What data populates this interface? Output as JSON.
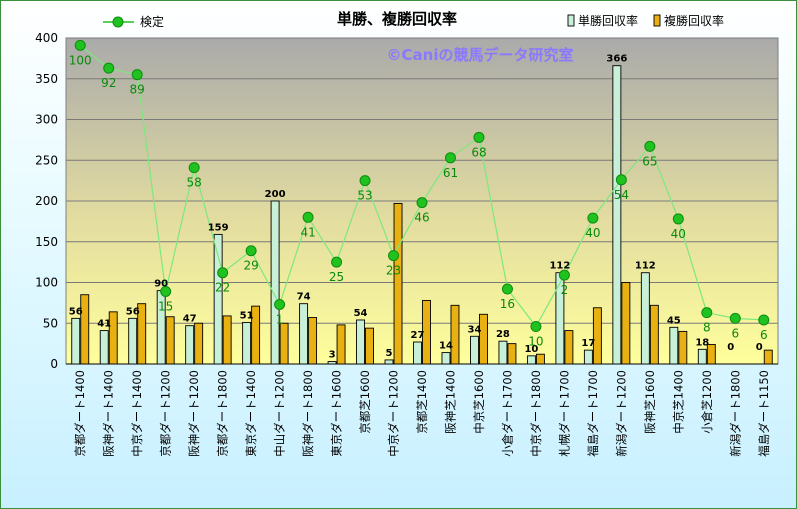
{
  "chart_data": {
    "type": "bar",
    "title": "単勝、複勝回収率",
    "watermark": "©Caniの競馬データ研究室",
    "ylim": [
      0,
      400
    ],
    "yticks": [
      0,
      50,
      100,
      150,
      200,
      250,
      300,
      350,
      400
    ],
    "legend_placement": "top",
    "grid": true,
    "categories": [
      "京都ダート1400",
      "阪神ダート1400",
      "中京ダート1400",
      "京都ダート1200",
      "阪神ダート1200",
      "京都ダート1800",
      "東京ダート1400",
      "中山ダート1200",
      "阪神ダート1800",
      "東京ダート1600",
      "京都芝1600",
      "中京ダート1200",
      "京都芝1400",
      "阪神芝1400",
      "中京芝1600",
      "小倉ダート1700",
      "中京ダート1800",
      "札幌ダート1700",
      "福島ダート1700",
      "新潟ダート1200",
      "阪神芝1600",
      "中京芝1400",
      "小倉芝1200",
      "新潟ダート1800",
      "福島ダート1150"
    ],
    "series": [
      {
        "name": "単勝回収率",
        "type": "bar",
        "color": "#c8f0d8",
        "values": [
          56,
          41,
          56,
          90,
          47,
          159,
          51,
          200,
          74,
          3,
          54,
          5,
          27,
          14,
          34,
          28,
          10,
          112,
          17,
          366,
          112,
          45,
          18,
          0,
          0
        ],
        "labels": [
          "56",
          "41",
          "56",
          "90",
          "47",
          "159",
          "51",
          "200",
          "74",
          "3",
          "54",
          "5",
          "27",
          "14",
          "34",
          "28",
          "10",
          "112",
          "17",
          "366",
          "112",
          "45",
          "18",
          "0",
          "0"
        ]
      },
      {
        "name": "複勝回収率",
        "type": "bar",
        "color": "#e8b010",
        "values": [
          85,
          64,
          74,
          58,
          50,
          59,
          71,
          50,
          57,
          48,
          44,
          197,
          78,
          72,
          61,
          25,
          12,
          41,
          69,
          100,
          72,
          40,
          24,
          0,
          17
        ]
      },
      {
        "name": "検定",
        "type": "line",
        "color": "#11bb11",
        "values": [
          391,
          363,
          355,
          89,
          241,
          112,
          139,
          73,
          180,
          125,
          225,
          133,
          198,
          253,
          278,
          92,
          46,
          109,
          179,
          226,
          267,
          178,
          63,
          56,
          54
        ],
        "labels": [
          "100",
          "92",
          "89",
          "15",
          "58",
          "22",
          "29",
          "1",
          "41",
          "25",
          "53",
          "23",
          "46",
          "61",
          "68",
          "16",
          "10",
          "2",
          "40",
          "54",
          "65",
          "40",
          "8",
          "6",
          "6"
        ]
      }
    ]
  }
}
